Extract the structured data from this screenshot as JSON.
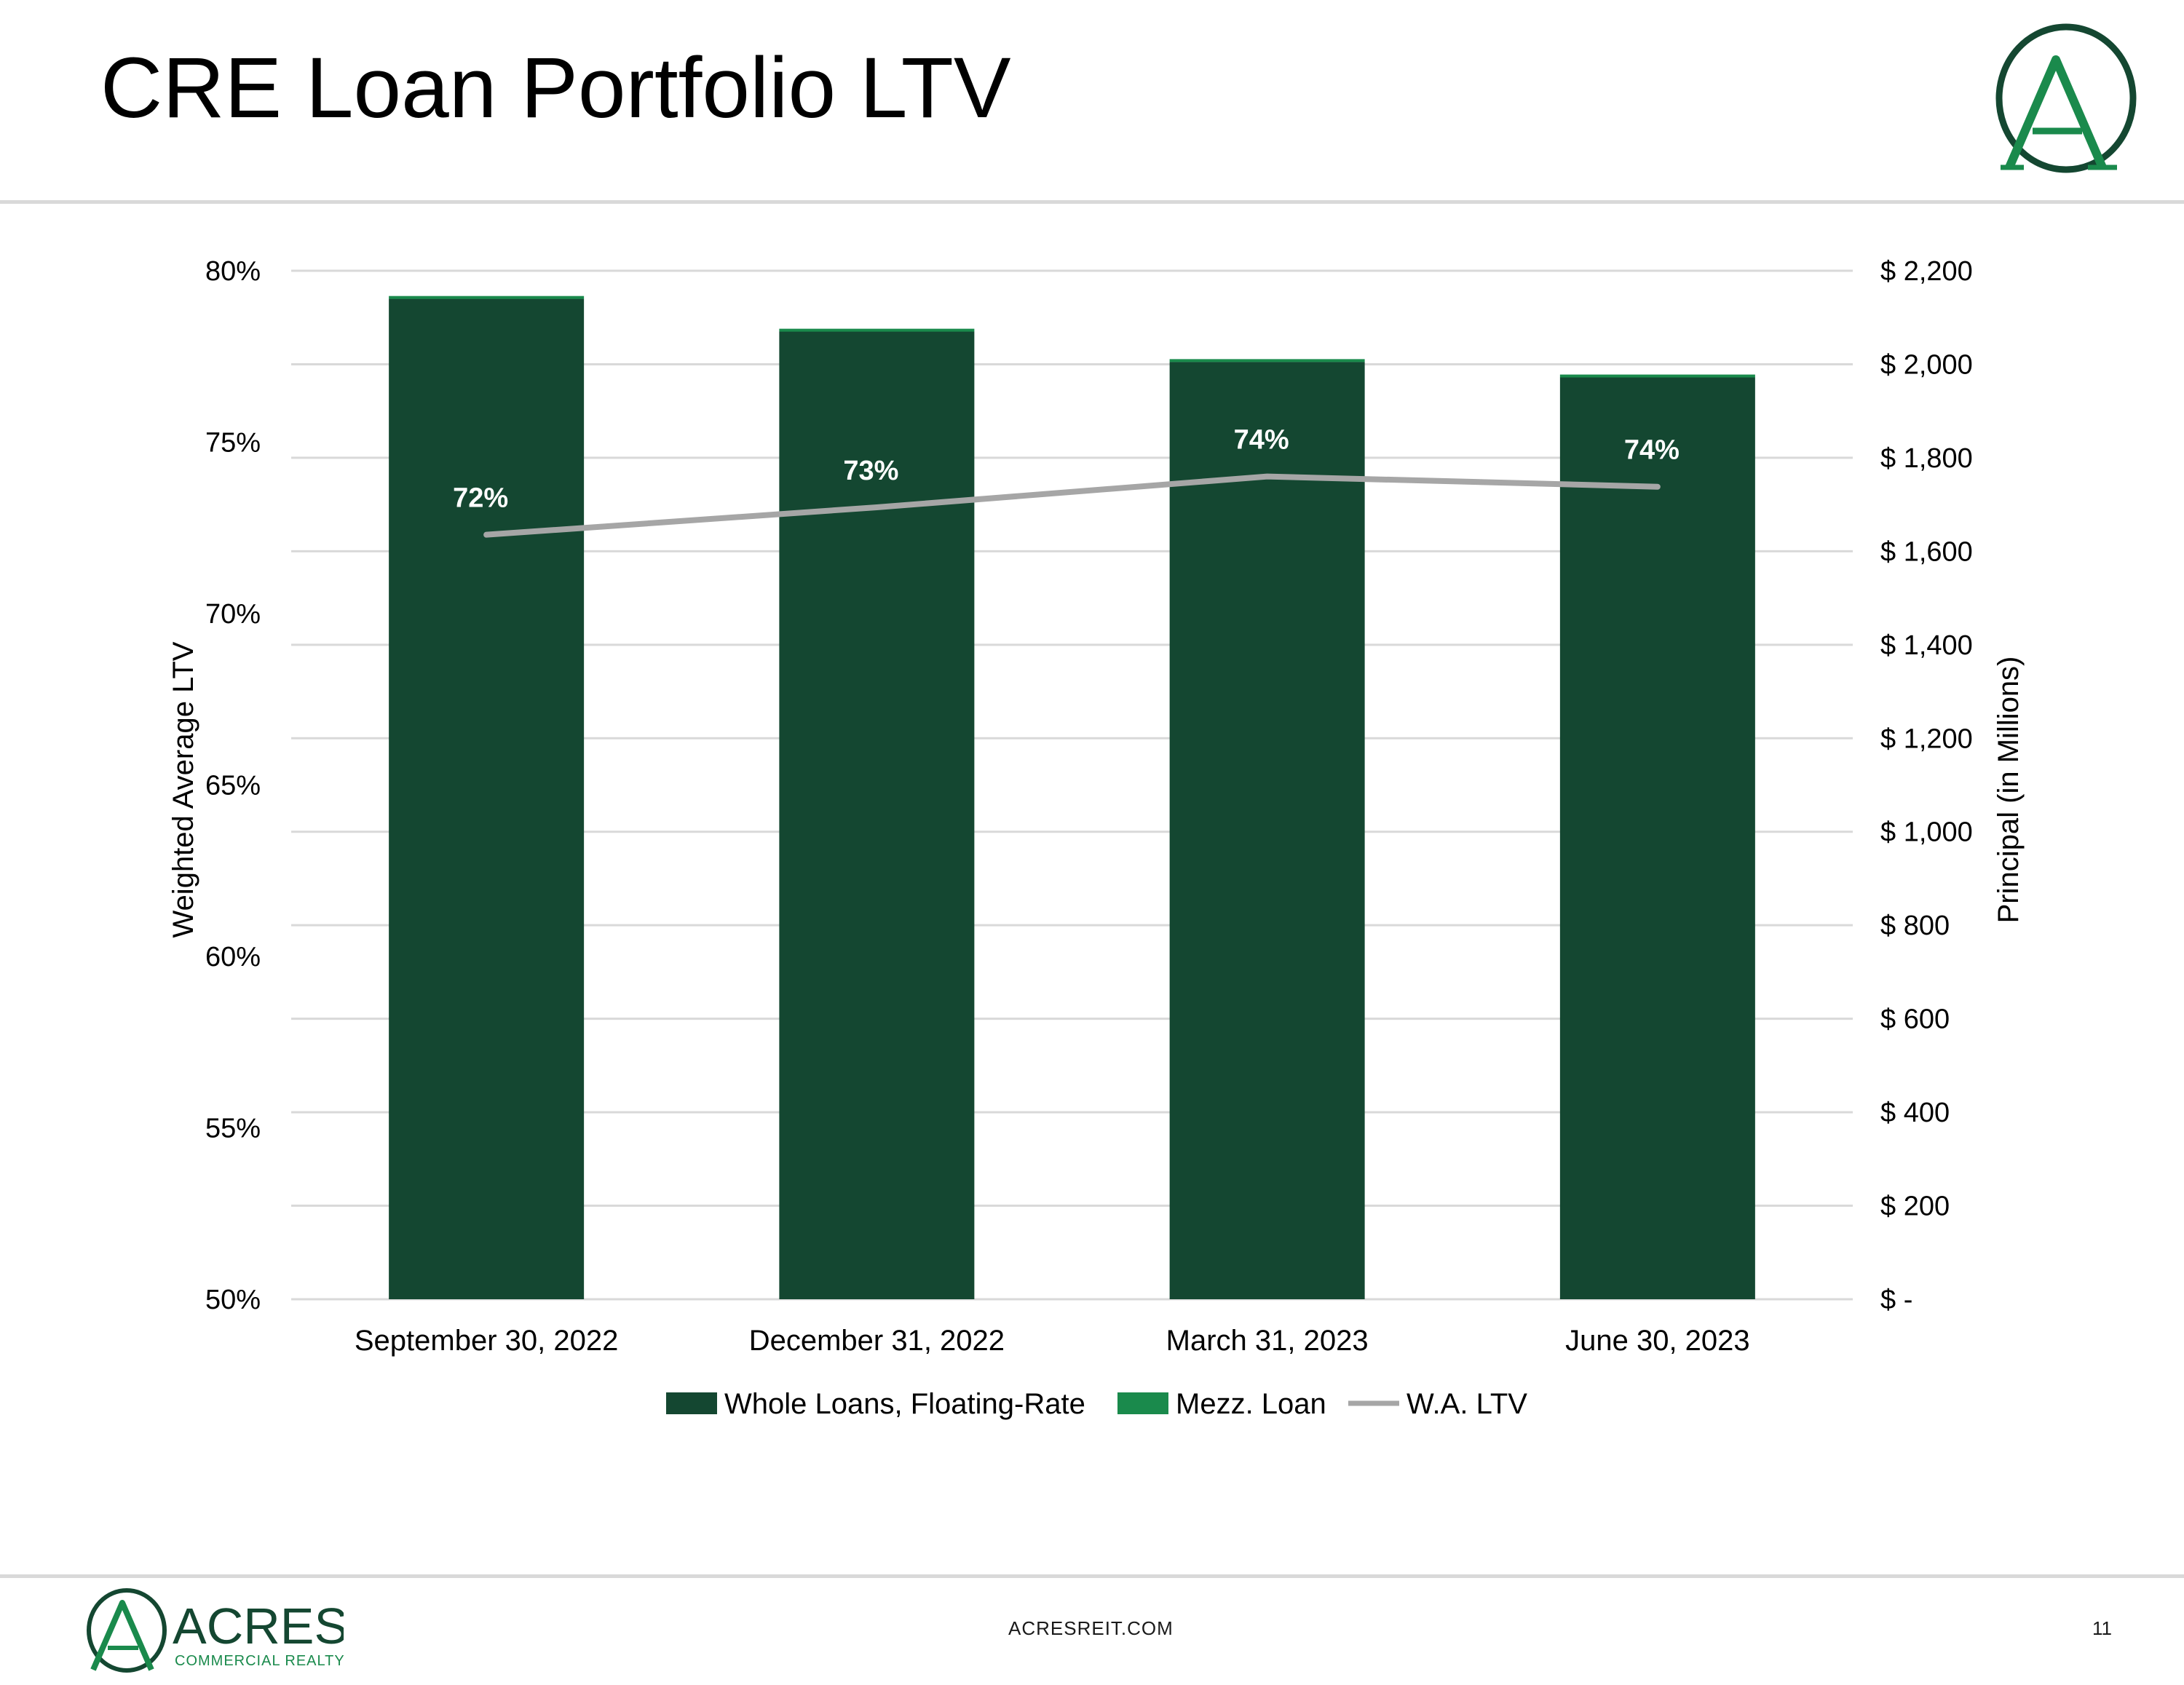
{
  "slide": {
    "title": "CRE Loan Portfolio LTV",
    "footer_url": "ACRESREIT.COM",
    "page_number": "11",
    "logo_brand": "ACRES",
    "logo_sub": "COMMERCIAL REALTY",
    "logo_letter": "A"
  },
  "colors": {
    "whole_loans": "#144731",
    "mezz_loan": "#1a8a4c",
    "ltv_line": "#a6a6a6",
    "gridline": "#d9d9d9"
  },
  "chart_data": {
    "type": "bar",
    "title": "",
    "categories": [
      "September 30, 2022",
      "December 31, 2022",
      "March 31, 2023",
      "June 30, 2023"
    ],
    "series": [
      {
        "name": "Whole Loans, Floating-Rate",
        "kind": "bar",
        "axis": "right",
        "values": [
          2140,
          2070,
          2005,
          1972
        ]
      },
      {
        "name": "Mezz. Loan",
        "kind": "bar",
        "axis": "right",
        "values": [
          6,
          6,
          6,
          6
        ]
      },
      {
        "name": "W.A. LTV",
        "kind": "line",
        "axis": "left",
        "values": [
          72.3,
          73.1,
          74.0,
          73.7
        ],
        "labels": [
          "72%",
          "73%",
          "74%",
          "74%"
        ]
      }
    ],
    "y_left": {
      "label": "Weighted Average LTV",
      "range": [
        50,
        80
      ],
      "ticks": [
        50,
        55,
        60,
        65,
        70,
        75,
        80
      ],
      "tick_labels": [
        "50%",
        "55%",
        "60%",
        "65%",
        "70%",
        "75%",
        "80%"
      ]
    },
    "y_right": {
      "label": "Principal (in Millions)",
      "range": [
        0,
        2200
      ],
      "ticks": [
        0,
        200,
        400,
        600,
        800,
        1000,
        1200,
        1400,
        1600,
        1800,
        2000,
        2200
      ],
      "tick_labels": [
        "$ -",
        "$ 200",
        "$ 400",
        "$ 600",
        "$ 800",
        "$ 1,000",
        "$ 1,200",
        "$ 1,400",
        "$ 1,600",
        "$ 1,800",
        "$ 2,000",
        "$ 2,200"
      ]
    },
    "grid": true,
    "legend": "bottom"
  }
}
